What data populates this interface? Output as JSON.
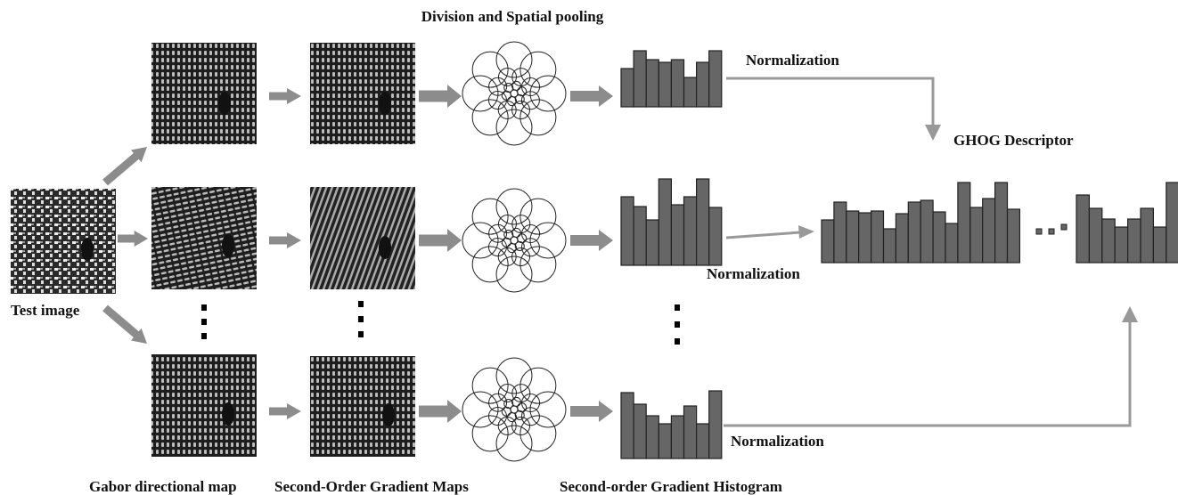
{
  "pooling_label": "Division and Spatial pooling",
  "input_label": "Test image",
  "descriptor_label": "GHOG Descriptor",
  "normalization_labels": [
    "Normalization",
    "Normalization",
    "Normalization"
  ],
  "captions": [
    "Gabor directional map",
    "Second-Order Gradient Maps",
    "Second-order Gradient Histogram"
  ]
}
